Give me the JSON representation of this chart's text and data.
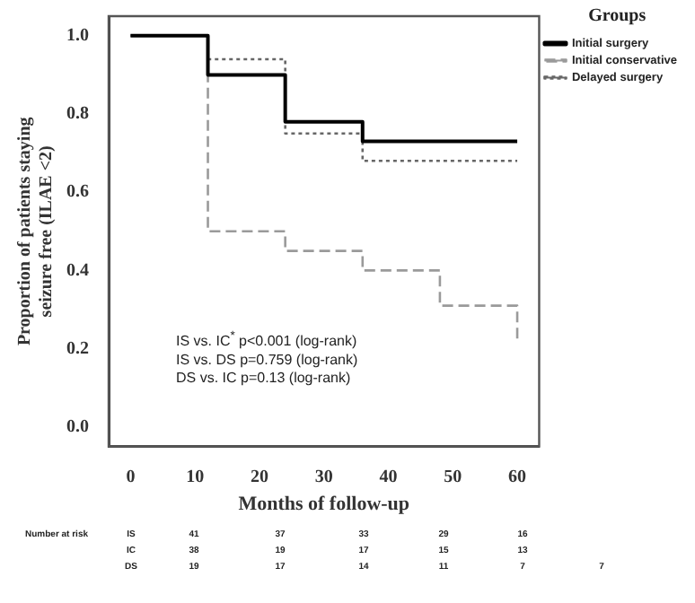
{
  "chart_data": {
    "type": "step",
    "xlabel": "Months of follow-up",
    "ylabel": "Proportion of patients staying\nseizure free (ILAE <2)",
    "legend_title": "Groups",
    "legend": "top right",
    "x": [
      0,
      12,
      24,
      36,
      48,
      60
    ],
    "xlim": [
      -3.4,
      63.4
    ],
    "xticks": [
      0,
      10,
      20,
      30,
      40,
      50,
      60
    ],
    "ylim": [
      -0.05,
      1.05
    ],
    "yticks": [
      {
        "value": 0,
        "label": "0.0"
      },
      0.2,
      0.4,
      0.6,
      0.8,
      {
        "value": 1,
        "label": "1.0"
      }
    ],
    "grid": false,
    "marker": "none",
    "series": [
      {
        "name": "Initial surgery",
        "color": "#000000",
        "line_style": "solid",
        "values": [
          1.0,
          0.9,
          0.78,
          0.73,
          0.73,
          0.73
        ]
      },
      {
        "name": "Initial conservative",
        "color": "#9a9a9a",
        "line_style": "dashed",
        "values": [
          1.0,
          0.5,
          0.45,
          0.4,
          0.31,
          0.22
        ]
      },
      {
        "name": "Delayed surgery",
        "color": "#666666",
        "line_style": "dotted",
        "values": [
          1.0,
          0.94,
          0.75,
          0.68,
          0.68,
          0.68
        ]
      }
    ],
    "annotations": [
      "IS vs. IC$^{*}$ p<0.001 (log-rank)",
      "IS vs. DS p=0.759 (log-rank)",
      "DS vs. IC p=0.13 (log-rank)",
      "Number at risk",
      "IS 41 37 33 29 16",
      "IC 38 19 17 15 13",
      "DS 19 17 14 11 7 7"
    ]
  }
}
